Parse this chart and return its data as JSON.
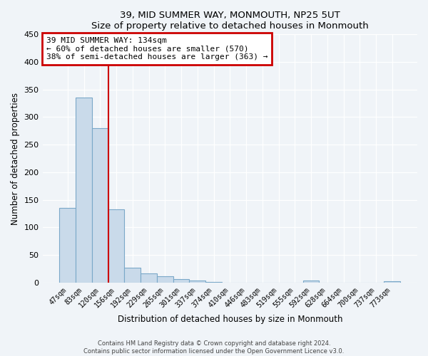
{
  "title": "39, MID SUMMER WAY, MONMOUTH, NP25 5UT",
  "subtitle": "Size of property relative to detached houses in Monmouth",
  "xlabel": "Distribution of detached houses by size in Monmouth",
  "ylabel": "Number of detached properties",
  "bar_labels": [
    "47sqm",
    "83sqm",
    "120sqm",
    "156sqm",
    "192sqm",
    "229sqm",
    "265sqm",
    "301sqm",
    "337sqm",
    "374sqm",
    "410sqm",
    "446sqm",
    "483sqm",
    "519sqm",
    "555sqm",
    "592sqm",
    "628sqm",
    "664sqm",
    "700sqm",
    "737sqm",
    "773sqm"
  ],
  "bar_values": [
    135,
    335,
    280,
    133,
    27,
    17,
    12,
    6,
    4,
    1,
    0,
    0,
    0,
    0,
    0,
    4,
    0,
    0,
    0,
    0,
    2
  ],
  "bar_color": "#c9daea",
  "bar_edge_color": "#7aa8c8",
  "vline_color": "#cc0000",
  "vline_xindex": 2,
  "ylim": [
    0,
    450
  ],
  "yticks": [
    0,
    50,
    100,
    150,
    200,
    250,
    300,
    350,
    400,
    450
  ],
  "annotation_title": "39 MID SUMMER WAY: 134sqm",
  "annotation_line1": "← 60% of detached houses are smaller (570)",
  "annotation_line2": "38% of semi-detached houses are larger (363) →",
  "annotation_box_color": "#cc0000",
  "footer_line1": "Contains HM Land Registry data © Crown copyright and database right 2024.",
  "footer_line2": "Contains public sector information licensed under the Open Government Licence v3.0.",
  "background_color": "#f0f4f8",
  "plot_background_color": "#f0f4f8",
  "grid_color": "#ffffff"
}
